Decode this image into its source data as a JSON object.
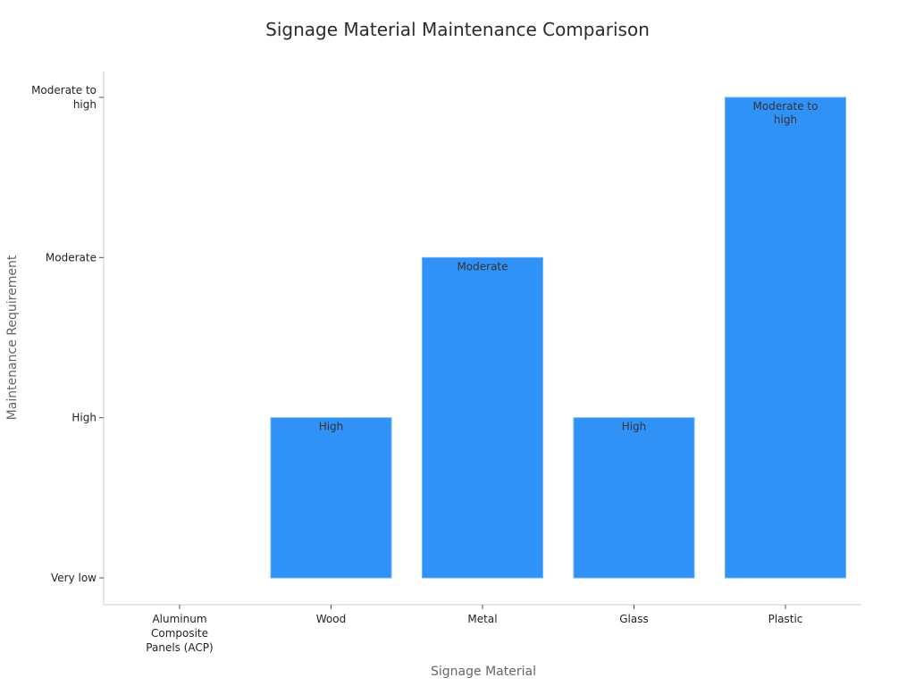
{
  "chart_data": {
    "type": "bar",
    "title": "Signage Material Maintenance Comparison",
    "xlabel": "Signage Material",
    "ylabel": "Maintenance Requirement",
    "categories": [
      "Aluminum Composite Panels (ACP)",
      "Wood",
      "Metal",
      "Glass",
      "Plastic"
    ],
    "category_lines": [
      [
        "Aluminum",
        "Composite",
        "Panels (ACP)"
      ],
      [
        "Wood"
      ],
      [
        "Metal"
      ],
      [
        "Glass"
      ],
      [
        "Plastic"
      ]
    ],
    "y_levels": [
      "Very low",
      "High",
      "Moderate",
      "Moderate to high"
    ],
    "y_level_lines": [
      [
        "Very low"
      ],
      [
        "High"
      ],
      [
        "Moderate"
      ],
      [
        "Moderate to",
        "high"
      ]
    ],
    "values": [
      0,
      1,
      2,
      1,
      3
    ],
    "value_labels": [
      "",
      "High",
      "Moderate",
      "High",
      "Moderate to high"
    ],
    "value_label_lines": [
      [],
      [
        "High"
      ],
      [
        "Moderate"
      ],
      [
        "High"
      ],
      [
        "Moderate to",
        "high"
      ]
    ],
    "bar_color": "#3092f7",
    "grid": false,
    "legend": "none"
  }
}
